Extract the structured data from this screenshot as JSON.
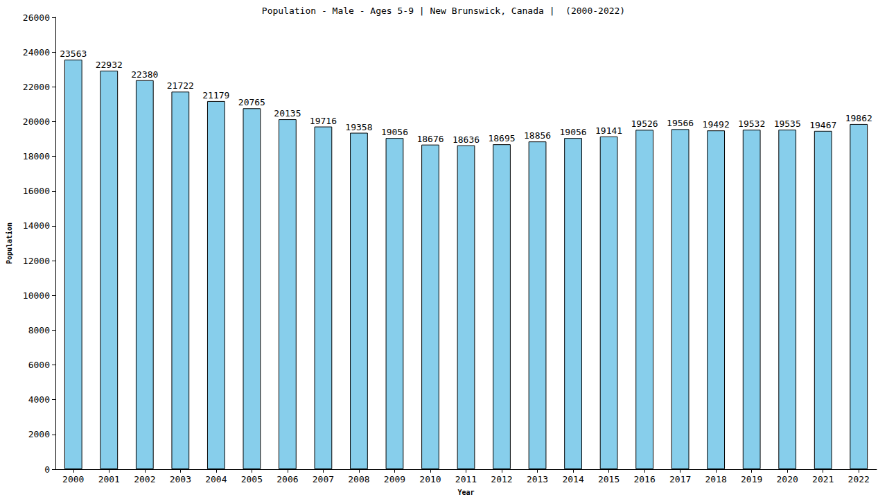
{
  "chart_data": {
    "type": "bar",
    "title": "Population - Male - Ages 5-9 | New Brunswick, Canada |  (2000-2022)",
    "xlabel": "Year",
    "ylabel": "Population",
    "categories": [
      "2000",
      "2001",
      "2002",
      "2003",
      "2004",
      "2005",
      "2006",
      "2007",
      "2008",
      "2009",
      "2010",
      "2011",
      "2012",
      "2013",
      "2014",
      "2015",
      "2016",
      "2017",
      "2018",
      "2019",
      "2020",
      "2021",
      "2022"
    ],
    "values": [
      23563,
      22932,
      22380,
      21722,
      21179,
      20765,
      20135,
      19716,
      19358,
      19056,
      18676,
      18636,
      18695,
      18856,
      19056,
      19141,
      19526,
      19566,
      19492,
      19532,
      19535,
      19467,
      19862
    ],
    "color": "#87ceeb",
    "ylim": [
      0,
      26000
    ],
    "yticks": [
      0,
      2000,
      4000,
      6000,
      8000,
      10000,
      12000,
      14000,
      16000,
      18000,
      20000,
      22000,
      24000,
      26000
    ],
    "grid": false,
    "data_labels": true
  }
}
